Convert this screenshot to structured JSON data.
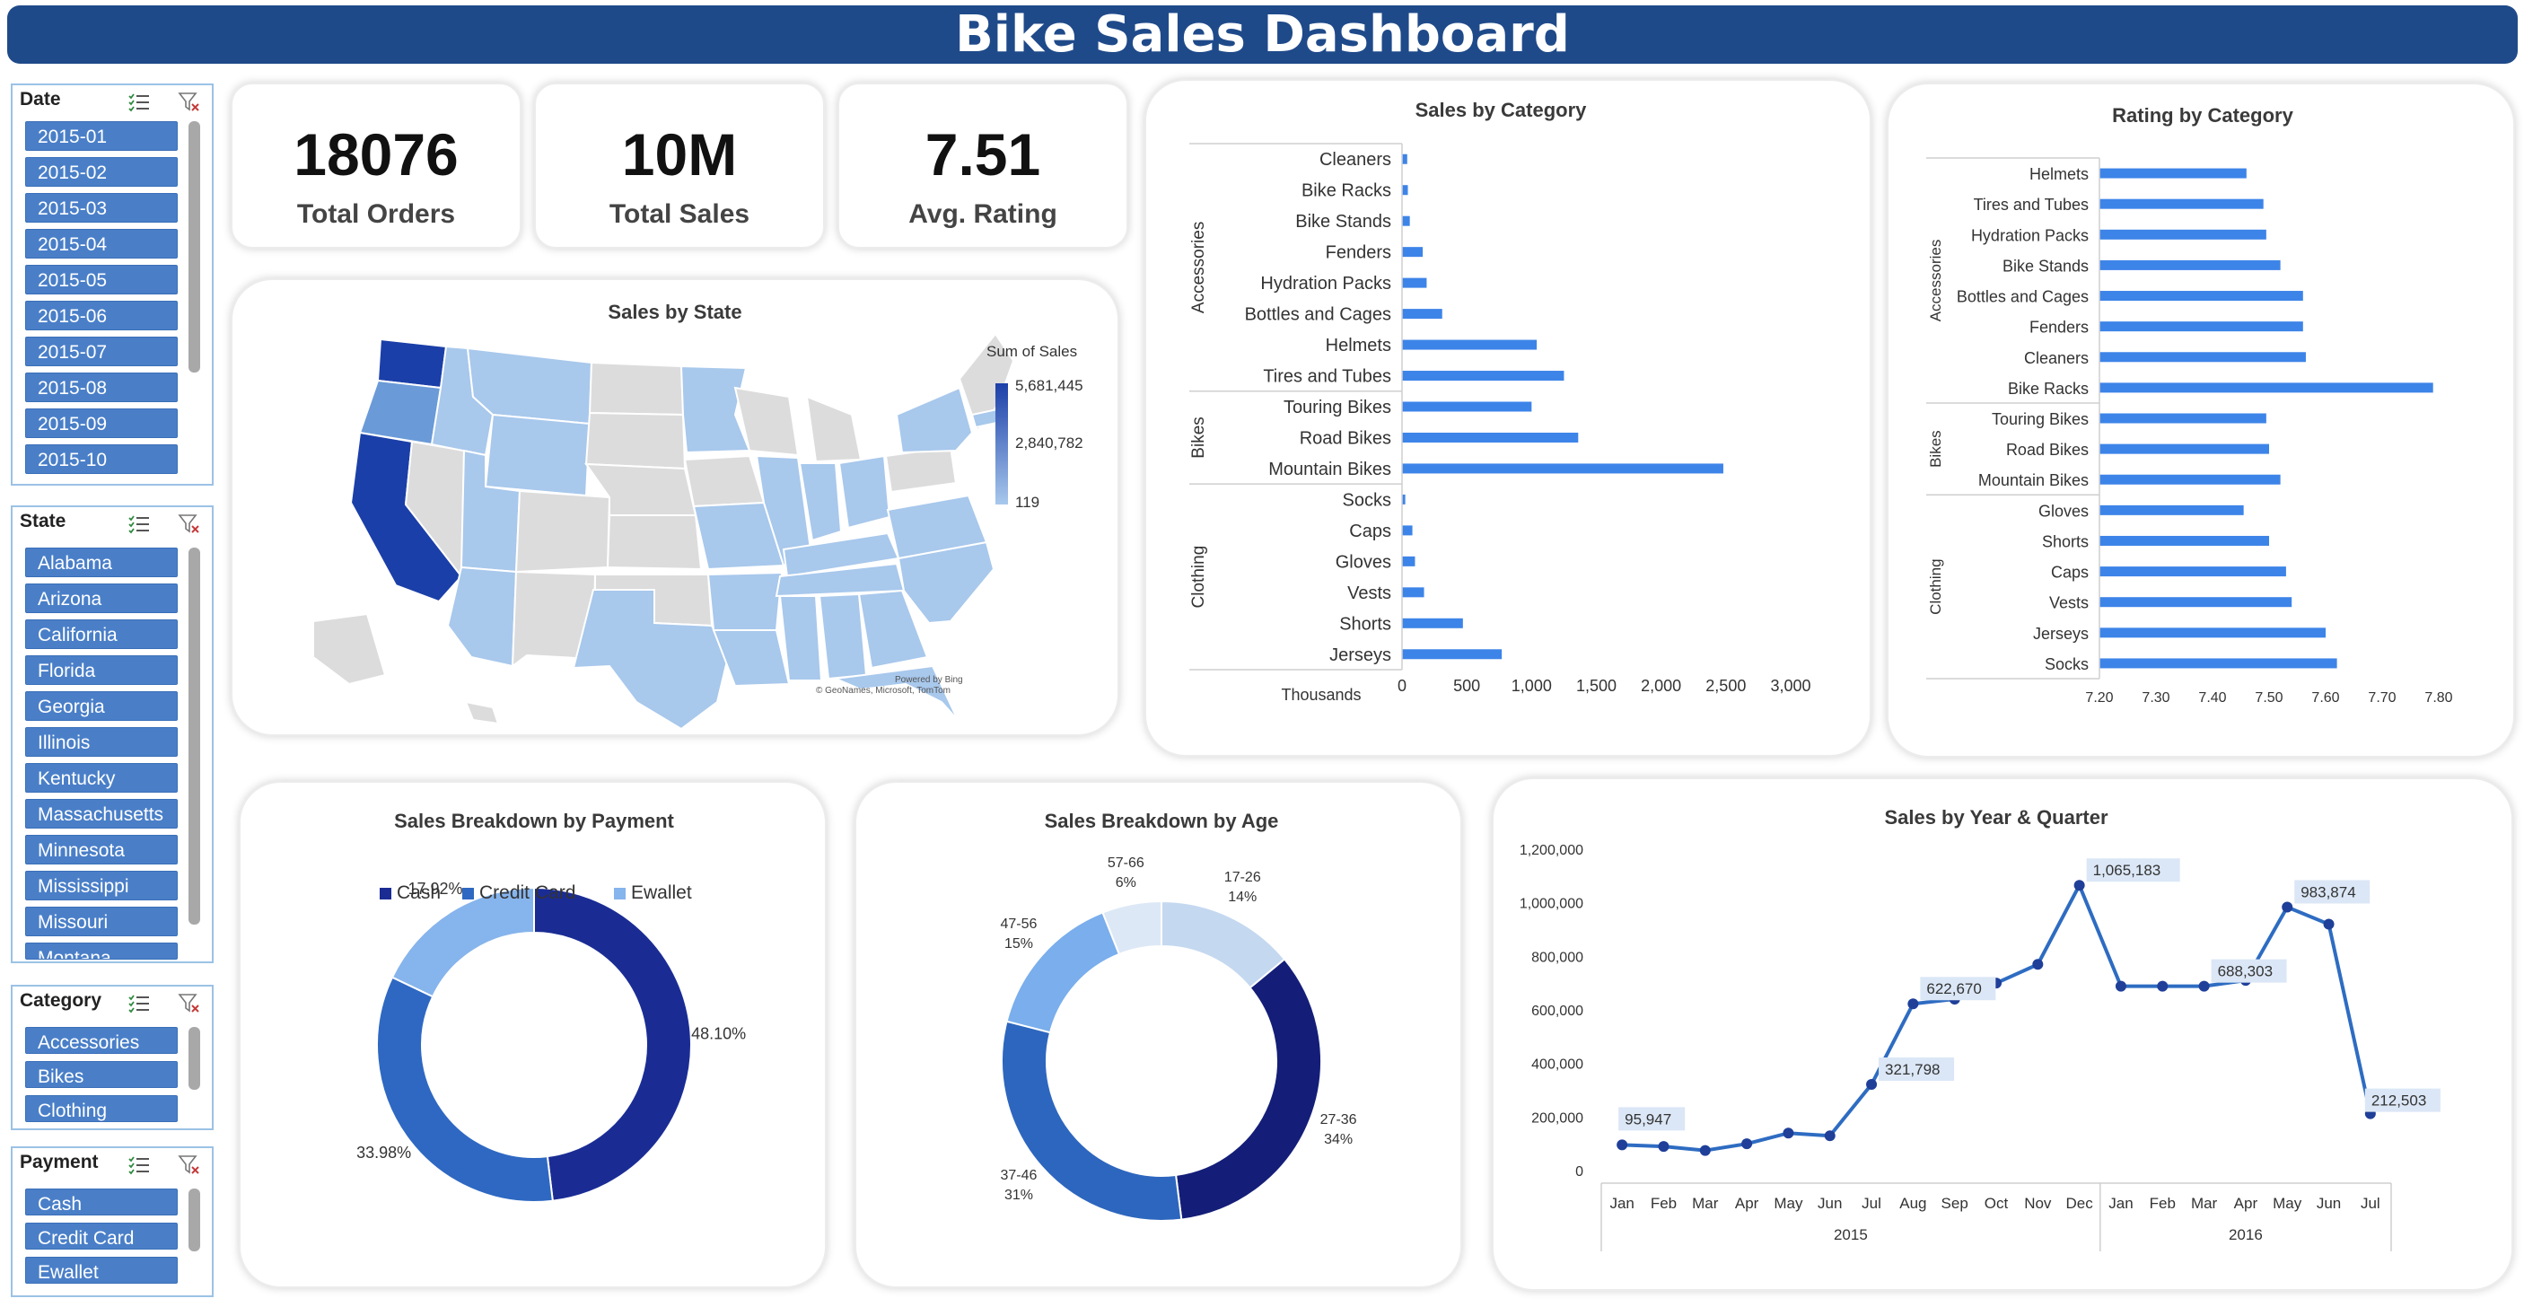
{
  "title": "Bike Sales Dashboard",
  "kpis": [
    {
      "value": "18076",
      "label": "Total Orders"
    },
    {
      "value": "10M",
      "label": "Total Sales"
    },
    {
      "value": "7.51",
      "label": "Avg. Rating"
    }
  ],
  "slicers": {
    "date": {
      "label": "Date",
      "items": [
        "2015-01",
        "2015-02",
        "2015-03",
        "2015-04",
        "2015-05",
        "2015-06",
        "2015-07",
        "2015-08",
        "2015-09",
        "2015-10"
      ]
    },
    "state": {
      "label": "State",
      "items": [
        "Alabama",
        "Arizona",
        "California",
        "Florida",
        "Georgia",
        "Illinois",
        "Kentucky",
        "Massachusetts",
        "Minnesota",
        "Mississippi",
        "Missouri",
        "Montana"
      ]
    },
    "category": {
      "label": "Category",
      "items": [
        "Accessories",
        "Bikes",
        "Clothing"
      ]
    },
    "payment": {
      "label": "Payment",
      "items": [
        "Cash",
        "Credit Card",
        "Ewallet"
      ]
    }
  },
  "colors": {
    "header": "#1f4a8a",
    "slicer_item": "#4a7fc8",
    "bar": "#3d84e8",
    "cash": "#1a2c94",
    "credit": "#2e68c2",
    "ewallet": "#86b4ec",
    "map_high": "#1b3fa8",
    "map_low": "#a8c8ec",
    "map_nodata": "#dcdcdc",
    "line": "#2e6cc2"
  },
  "map": {
    "title": "Sales by State",
    "legend_title": "Sum of Sales",
    "legend_max": "5,681,445",
    "legend_mid": "2,840,782",
    "legend_min": "119",
    "credit_1": "Powered by Bing",
    "credit_2": "© GeoNames, Microsoft, TomTom"
  },
  "icons": [
    "multi-select-icon",
    "clear-filter-icon"
  ],
  "chart_data": [
    {
      "id": "sales_by_category",
      "type": "bar",
      "title": "Sales by Category",
      "xlabel": "Thousands",
      "xlim": [
        0,
        3000
      ],
      "xticks": [
        "0",
        "500",
        "1,000",
        "1,500",
        "2,000",
        "2,500",
        "3,000"
      ],
      "groups": [
        {
          "name": "Accessories",
          "categories": [
            "Cleaners",
            "Bike Racks",
            "Bike Stands",
            "Fenders",
            "Hydration Packs",
            "Bottles and Cages",
            "Helmets",
            "Tires and Tubes"
          ],
          "values": [
            40,
            45,
            60,
            160,
            190,
            310,
            1040,
            1250
          ]
        },
        {
          "name": "Bikes",
          "categories": [
            "Touring Bikes",
            "Road Bikes",
            "Mountain Bikes"
          ],
          "values": [
            1000,
            1360,
            2480
          ]
        },
        {
          "name": "Clothing",
          "categories": [
            "Socks",
            "Caps",
            "Gloves",
            "Vests",
            "Shorts",
            "Jerseys"
          ],
          "values": [
            25,
            80,
            100,
            170,
            470,
            770
          ]
        }
      ]
    },
    {
      "id": "rating_by_category",
      "type": "bar",
      "title": "Rating by Category",
      "xlim": [
        7.2,
        7.8
      ],
      "xticks": [
        "7.20",
        "7.30",
        "7.40",
        "7.50",
        "7.60",
        "7.70",
        "7.80"
      ],
      "groups": [
        {
          "name": "Accessories",
          "categories": [
            "Helmets",
            "Tires and Tubes",
            "Hydration Packs",
            "Bike Stands",
            "Bottles and Cages",
            "Fenders",
            "Cleaners",
            "Bike Racks"
          ],
          "values": [
            7.46,
            7.49,
            7.495,
            7.52,
            7.56,
            7.56,
            7.565,
            7.79
          ]
        },
        {
          "name": "Bikes",
          "categories": [
            "Touring Bikes",
            "Road Bikes",
            "Mountain Bikes"
          ],
          "values": [
            7.495,
            7.5,
            7.52
          ]
        },
        {
          "name": "Clothing",
          "categories": [
            "Gloves",
            "Shorts",
            "Caps",
            "Vests",
            "Jerseys",
            "Socks"
          ],
          "values": [
            7.455,
            7.5,
            7.53,
            7.54,
            7.6,
            7.62
          ]
        }
      ]
    },
    {
      "id": "sales_by_payment",
      "type": "pie",
      "title": "Sales Breakdown by Payment",
      "legend_position": "top",
      "labels": [
        "Cash",
        "Credit Card",
        "Ewallet"
      ],
      "values": [
        48.1,
        33.98,
        17.92
      ],
      "value_labels": [
        "48.10%",
        "33.98%",
        "17.92%"
      ]
    },
    {
      "id": "sales_by_age",
      "type": "pie",
      "title": "Sales Breakdown by Age",
      "labels": [
        "17-26",
        "27-36",
        "37-46",
        "47-56",
        "57-66"
      ],
      "values": [
        14,
        34,
        31,
        15,
        6
      ],
      "value_labels": [
        "14%",
        "34%",
        "31%",
        "15%",
        "6%"
      ]
    },
    {
      "id": "sales_by_year_quarter",
      "type": "line",
      "title": "Sales by Year & Quarter",
      "ylim": [
        0,
        1200000
      ],
      "yticks": [
        "0",
        "200,000",
        "400,000",
        "600,000",
        "800,000",
        "1,000,000",
        "1,200,000"
      ],
      "years": [
        {
          "label": "2015",
          "count": 12
        },
        {
          "label": "2016",
          "count": 7
        }
      ],
      "x": [
        "Jan",
        "Feb",
        "Mar",
        "Apr",
        "May",
        "Jun",
        "Jul",
        "Aug",
        "Sep",
        "Oct",
        "Nov",
        "Dec",
        "Jan",
        "Feb",
        "Mar",
        "Apr",
        "May",
        "Jun",
        "Jul"
      ],
      "values": [
        95947,
        90000,
        75000,
        100000,
        140000,
        130000,
        321798,
        622670,
        640000,
        700000,
        770000,
        1065183,
        688303,
        688303,
        688303,
        710000,
        983874,
        920000,
        212503
      ],
      "data_labels": [
        {
          "i": 0,
          "text": "95,947"
        },
        {
          "i": 6,
          "text": "321,798"
        },
        {
          "i": 7,
          "text": "622,670"
        },
        {
          "i": 11,
          "text": "1,065,183"
        },
        {
          "i": 14,
          "text": "688,303"
        },
        {
          "i": 16,
          "text": "983,874"
        },
        {
          "i": 18,
          "text": "212,503"
        }
      ]
    }
  ]
}
